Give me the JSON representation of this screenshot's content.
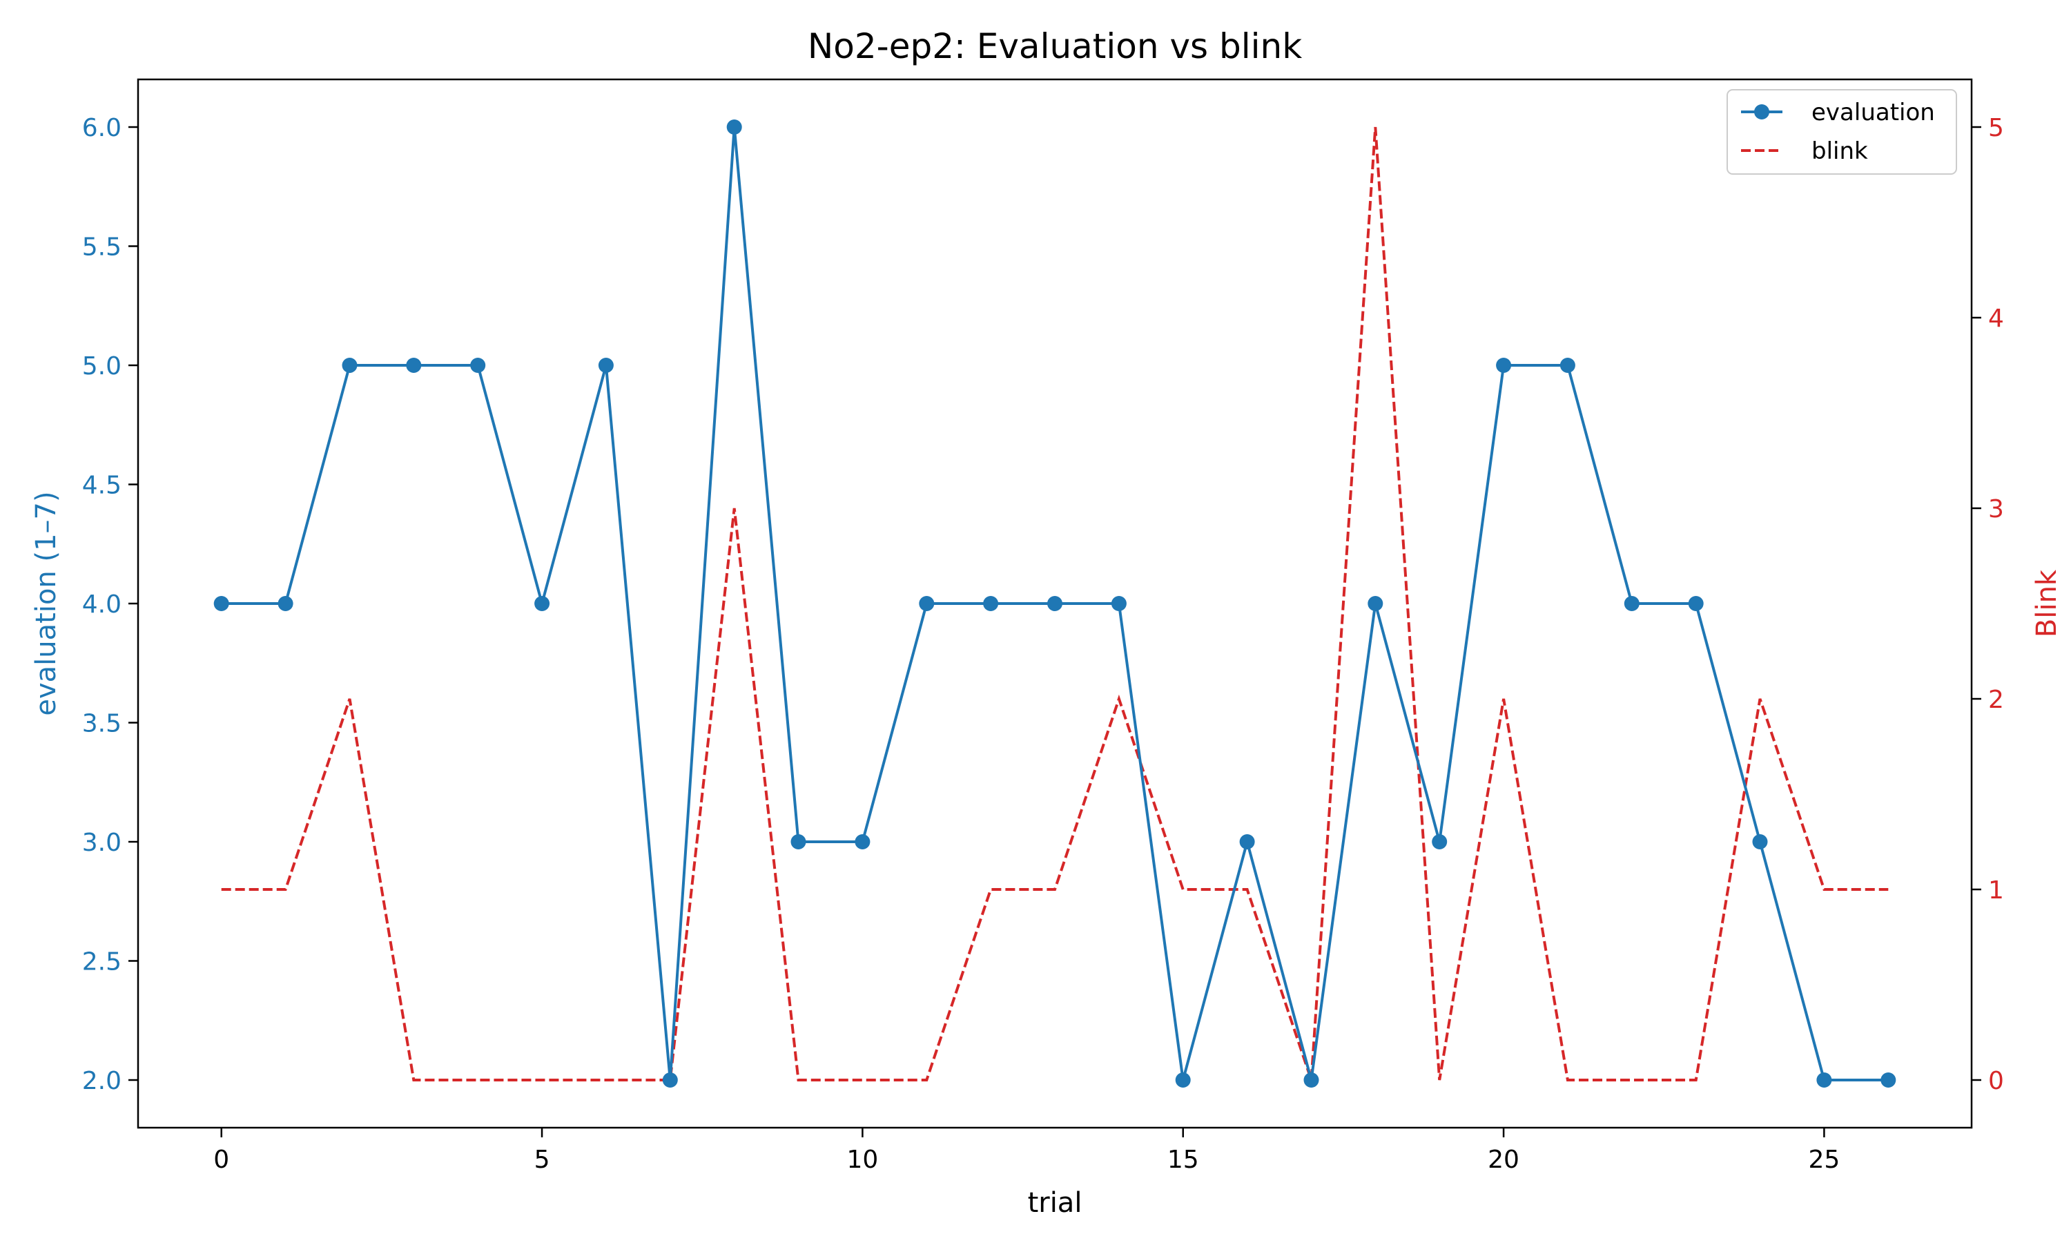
{
  "chart_data": {
    "type": "line",
    "title": "No2-ep2: Evaluation vs blink",
    "xlabel": "trial",
    "ylabel_left": "evaluation (1–7)",
    "ylabel_right": "Blink",
    "xlim": [
      -1.3,
      27.3
    ],
    "ylim_left": [
      1.8,
      6.2
    ],
    "ylim_right": [
      -0.25,
      5.25
    ],
    "x_ticks": [
      0,
      5,
      10,
      15,
      20,
      25
    ],
    "y_left_ticks": [
      "2.0",
      "2.5",
      "3.0",
      "3.5",
      "4.0",
      "4.5",
      "5.0",
      "5.5",
      "6.0"
    ],
    "y_right_ticks": [
      "0",
      "1",
      "2",
      "3",
      "4",
      "5"
    ],
    "grid": false,
    "legend_position": "top-right",
    "x": [
      0,
      1,
      2,
      3,
      4,
      5,
      6,
      7,
      8,
      9,
      10,
      11,
      12,
      13,
      14,
      15,
      16,
      17,
      18,
      19,
      20,
      21,
      22,
      23,
      24,
      25,
      26
    ],
    "series": [
      {
        "name": "evaluation",
        "axis": "left",
        "style": "solid-marker",
        "color": "#1f77b4",
        "values": [
          4,
          4,
          5,
          5,
          5,
          4,
          5,
          2,
          6,
          3,
          3,
          4,
          4,
          4,
          4,
          2,
          3,
          2,
          4,
          3,
          5,
          5,
          4,
          4,
          3,
          2,
          2
        ]
      },
      {
        "name": "blink",
        "axis": "right",
        "style": "dashed",
        "color": "#d62728",
        "values": [
          1,
          1,
          2,
          0,
          0,
          0,
          0,
          0,
          3,
          0,
          0,
          0,
          1,
          1,
          2,
          1,
          1,
          0,
          5,
          0,
          2,
          0,
          0,
          0,
          2,
          1,
          1
        ]
      }
    ]
  }
}
